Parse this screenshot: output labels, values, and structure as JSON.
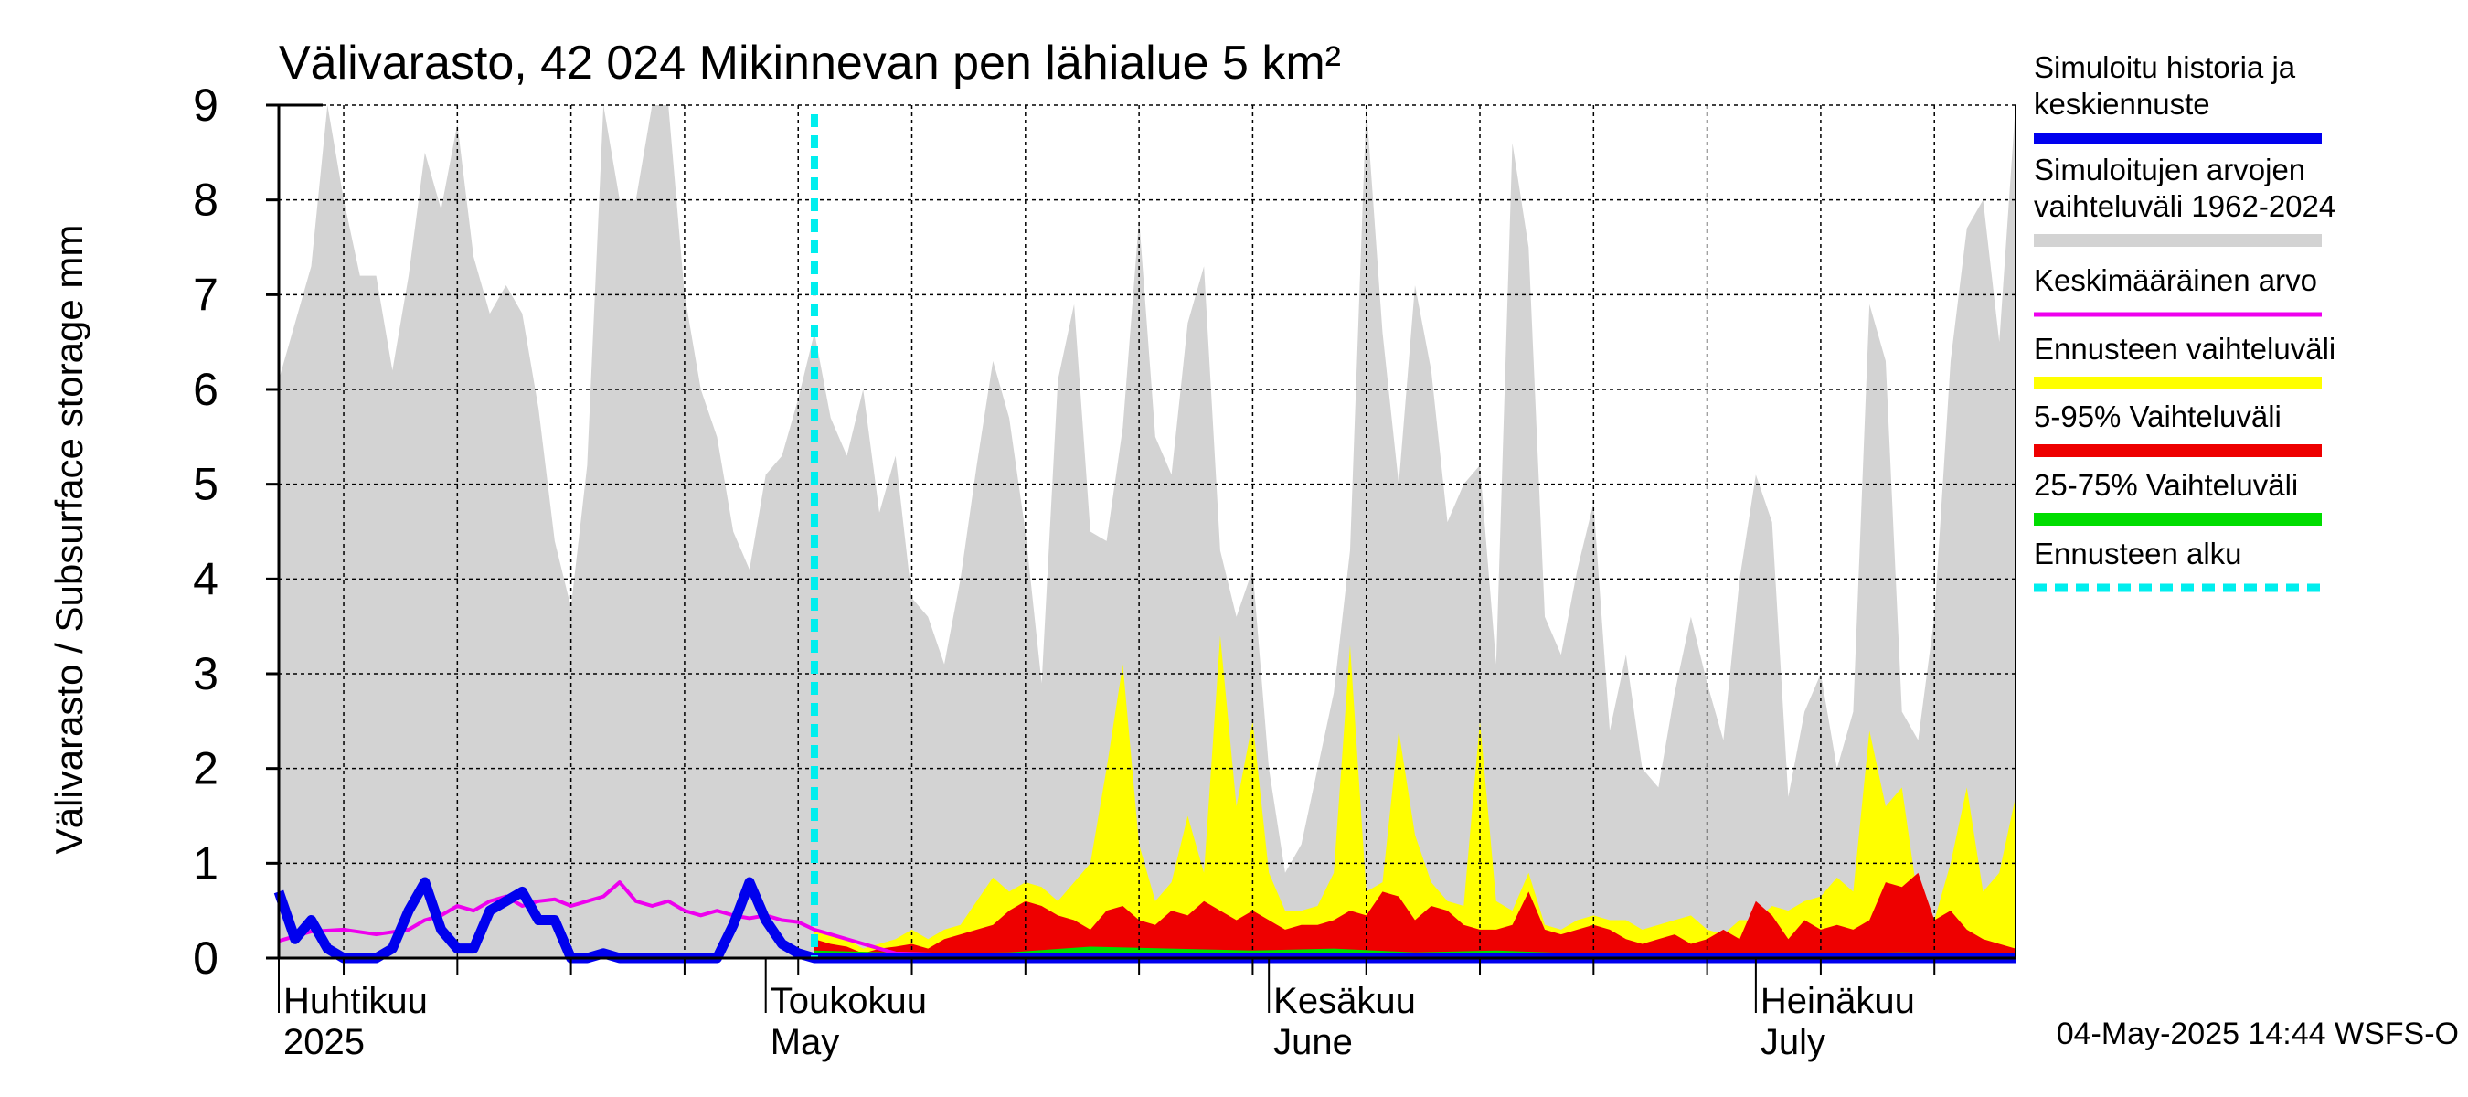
{
  "chart_data": {
    "type": "area",
    "title": "Välivarasto, 42 024 Mikinnevan pen lähialue 5 km²",
    "ylabel": "Välivarasto / Subsurface storage  mm",
    "xlabel": "",
    "ylim": [
      0,
      9
    ],
    "xlim_days": [
      0,
      107
    ],
    "grid": true,
    "y_ticks": [
      0,
      1,
      2,
      3,
      4,
      5,
      6,
      7,
      8,
      9
    ],
    "x_major_ticks_days": [
      0,
      30,
      61,
      91
    ],
    "month_labels": [
      {
        "day": 0,
        "line1": "Huhtikuu",
        "line2": "2025"
      },
      {
        "day": 30,
        "line1": "Toukokuu",
        "line2": "May"
      },
      {
        "day": 61,
        "line1": "Kesäkuu",
        "line2": "June"
      },
      {
        "day": 91,
        "line1": "Heinäkuu",
        "line2": "July"
      }
    ],
    "forecast_start_day": 33,
    "x_start": "2025-04-01",
    "legend": [
      {
        "label": "Simuloitu historia ja keskiennuste",
        "color": "#0000ee",
        "style": "solid"
      },
      {
        "label": "Simuloitujen arvojen vaihteluväli 1962-2024",
        "color": "#d3d3d3",
        "style": "solid"
      },
      {
        "label": "Keskimääräinen arvo",
        "color": "#ee00ee",
        "style": "solid"
      },
      {
        "label": "Ennusteen vaihteluväli",
        "color": "#ffff00",
        "style": "solid"
      },
      {
        "label": "5-95% Vaihteluväli",
        "color": "#ee0000",
        "style": "solid"
      },
      {
        "label": "25-75% Vaihteluväli",
        "color": "#00dd00",
        "style": "solid"
      },
      {
        "label": "Ennusteen alku",
        "color": "#00eeee",
        "style": "dashed"
      }
    ],
    "timestamp": "04-May-2025 14:44 WSFS-O",
    "series": [
      {
        "name": "Simuloitujen arvojen vaihteluväli 1962-2024 (max)",
        "color": "#d3d3d3",
        "x": [
          0,
          1,
          2,
          3,
          4,
          5,
          6,
          7,
          8,
          9,
          10,
          11,
          12,
          13,
          14,
          15,
          16,
          17,
          18,
          19,
          20,
          21,
          22,
          23,
          24,
          25,
          26,
          27,
          28,
          29,
          30,
          31,
          32,
          33,
          34,
          35,
          36,
          37,
          38,
          39,
          40,
          41,
          42,
          43,
          44,
          45,
          46,
          47,
          48,
          49,
          50,
          51,
          52,
          53,
          54,
          55,
          56,
          57,
          58,
          59,
          60,
          61,
          62,
          63,
          64,
          65,
          66,
          67,
          68,
          69,
          70,
          71,
          72,
          73,
          74,
          75,
          76,
          77,
          78,
          79,
          80,
          81,
          82,
          83,
          84,
          85,
          86,
          87,
          88,
          89,
          90,
          91,
          92,
          93,
          94,
          95,
          96,
          97,
          98,
          99,
          100,
          101,
          102,
          103,
          104,
          105,
          106,
          107
        ],
        "y": [
          6.1,
          6.7,
          7.3,
          9.0,
          8.0,
          7.2,
          7.2,
          6.2,
          7.2,
          8.5,
          7.9,
          8.8,
          7.4,
          6.8,
          7.1,
          6.8,
          5.8,
          4.4,
          3.7,
          5.2,
          9.0,
          8.0,
          8.0,
          9.0,
          9.0,
          7.0,
          6.0,
          5.5,
          4.5,
          4.1,
          5.1,
          5.3,
          5.9,
          6.6,
          5.7,
          5.3,
          6.0,
          4.7,
          5.3,
          3.8,
          3.6,
          3.1,
          4.0,
          5.2,
          6.3,
          5.7,
          4.5,
          2.9,
          6.1,
          6.9,
          4.5,
          4.4,
          5.6,
          7.8,
          5.5,
          5.1,
          6.7,
          7.3,
          4.3,
          3.6,
          4.1,
          2.0,
          0.9,
          1.2,
          2.0,
          2.8,
          4.3,
          9.0,
          6.6,
          5.0,
          7.1,
          6.2,
          4.6,
          5.0,
          5.2,
          3.1,
          8.6,
          7.5,
          3.6,
          3.2,
          4.1,
          4.8,
          2.4,
          3.2,
          2.0,
          1.8,
          2.8,
          3.6,
          2.9,
          2.3,
          4.0,
          5.1,
          4.6,
          1.7,
          2.6,
          3.0,
          2.0,
          2.6,
          6.9,
          6.3,
          2.6,
          2.3,
          3.6,
          6.3,
          7.7,
          8.0,
          6.5,
          9.0
        ]
      },
      {
        "name": "Ennusteen vaihteluväli (max)",
        "color": "#ffff00",
        "x": [
          33,
          34,
          35,
          36,
          37,
          38,
          39,
          40,
          41,
          42,
          43,
          44,
          45,
          46,
          47,
          48,
          49,
          50,
          51,
          52,
          53,
          54,
          55,
          56,
          57,
          58,
          59,
          60,
          61,
          62,
          63,
          64,
          65,
          66,
          67,
          68,
          69,
          70,
          71,
          72,
          73,
          74,
          75,
          76,
          77,
          78,
          79,
          80,
          81,
          82,
          83,
          84,
          85,
          86,
          87,
          88,
          89,
          90,
          91,
          92,
          93,
          94,
          95,
          96,
          97,
          98,
          99,
          100,
          101,
          102,
          103,
          104,
          105,
          106,
          107
        ],
        "y": [
          0.3,
          0.25,
          0.2,
          0.1,
          0.15,
          0.2,
          0.3,
          0.2,
          0.3,
          0.35,
          0.6,
          0.85,
          0.7,
          0.8,
          0.75,
          0.6,
          0.8,
          1.0,
          2.0,
          3.1,
          1.2,
          0.6,
          0.8,
          1.5,
          0.9,
          3.4,
          1.6,
          2.5,
          0.9,
          0.5,
          0.5,
          0.55,
          0.9,
          3.3,
          0.7,
          0.8,
          2.4,
          1.3,
          0.8,
          0.6,
          0.55,
          2.5,
          0.6,
          0.5,
          0.9,
          0.35,
          0.3,
          0.4,
          0.45,
          0.4,
          0.4,
          0.3,
          0.35,
          0.4,
          0.45,
          0.3,
          0.25,
          0.4,
          0.4,
          0.55,
          0.5,
          0.6,
          0.65,
          0.85,
          0.7,
          2.4,
          1.6,
          1.8,
          0.6,
          0.4,
          1.0,
          1.8,
          0.7,
          0.9,
          1.7
        ]
      },
      {
        "name": "5-95% Vaihteluväli (max)",
        "color": "#ee0000",
        "x": [
          33,
          34,
          35,
          36,
          37,
          38,
          39,
          40,
          41,
          42,
          43,
          44,
          45,
          46,
          47,
          48,
          49,
          50,
          51,
          52,
          53,
          54,
          55,
          56,
          57,
          58,
          59,
          60,
          61,
          62,
          63,
          64,
          65,
          66,
          67,
          68,
          69,
          70,
          71,
          72,
          73,
          74,
          75,
          76,
          77,
          78,
          79,
          80,
          81,
          82,
          83,
          84,
          85,
          86,
          87,
          88,
          89,
          90,
          91,
          92,
          93,
          94,
          95,
          96,
          97,
          98,
          99,
          100,
          101,
          102,
          103,
          104,
          105,
          106,
          107
        ],
        "y": [
          0.2,
          0.15,
          0.12,
          0.05,
          0.1,
          0.12,
          0.15,
          0.1,
          0.2,
          0.25,
          0.3,
          0.35,
          0.5,
          0.6,
          0.55,
          0.45,
          0.4,
          0.3,
          0.5,
          0.55,
          0.4,
          0.35,
          0.5,
          0.45,
          0.6,
          0.5,
          0.4,
          0.5,
          0.4,
          0.3,
          0.35,
          0.35,
          0.4,
          0.5,
          0.45,
          0.7,
          0.65,
          0.4,
          0.55,
          0.5,
          0.35,
          0.3,
          0.3,
          0.35,
          0.7,
          0.3,
          0.25,
          0.3,
          0.35,
          0.3,
          0.2,
          0.15,
          0.2,
          0.25,
          0.15,
          0.2,
          0.3,
          0.2,
          0.6,
          0.45,
          0.2,
          0.4,
          0.3,
          0.35,
          0.3,
          0.4,
          0.8,
          0.75,
          0.9,
          0.4,
          0.5,
          0.3,
          0.2,
          0.15,
          0.1
        ]
      },
      {
        "name": "25-75% Vaihteluväli (max)",
        "color": "#00dd00",
        "x": [
          33,
          40,
          45,
          50,
          55,
          60,
          65,
          70,
          75,
          80,
          85,
          90,
          95,
          100,
          105,
          107
        ],
        "y": [
          0.08,
          0.05,
          0.06,
          0.12,
          0.1,
          0.08,
          0.1,
          0.06,
          0.08,
          0.05,
          0.05,
          0.04,
          0.05,
          0.06,
          0.05,
          0.04
        ]
      },
      {
        "name": "Keskimääräinen arvo",
        "color": "#ee00ee",
        "x": [
          0,
          2,
          4,
          6,
          8,
          9,
          10,
          11,
          12,
          13,
          14,
          15,
          16,
          17,
          18,
          19,
          20,
          21,
          22,
          23,
          24,
          25,
          26,
          27,
          28,
          29,
          30,
          31,
          32,
          33,
          34,
          35,
          36,
          37,
          38,
          40,
          42,
          45,
          50,
          55,
          60,
          65,
          70,
          75,
          80,
          85,
          90,
          95,
          100,
          105,
          107
        ],
        "y": [
          0.18,
          0.28,
          0.3,
          0.25,
          0.3,
          0.4,
          0.45,
          0.55,
          0.5,
          0.6,
          0.65,
          0.55,
          0.6,
          0.62,
          0.55,
          0.6,
          0.65,
          0.8,
          0.6,
          0.55,
          0.6,
          0.5,
          0.45,
          0.5,
          0.45,
          0.42,
          0.45,
          0.4,
          0.38,
          0.3,
          0.25,
          0.2,
          0.15,
          0.1,
          0.05,
          0.04,
          0.03,
          0.03,
          0.02,
          0.02,
          0.02,
          0.02,
          0.02,
          0.02,
          0.02,
          0.02,
          0.02,
          0.02,
          0.02,
          0.02,
          0.02
        ]
      },
      {
        "name": "Simuloitu historia ja keskiennuste",
        "color": "#0000ee",
        "x": [
          0,
          1,
          2,
          3,
          4,
          5,
          6,
          7,
          8,
          9,
          10,
          11,
          12,
          13,
          14,
          15,
          16,
          17,
          18,
          19,
          20,
          21,
          22,
          23,
          24,
          25,
          26,
          27,
          28,
          29,
          30,
          31,
          32,
          33,
          34,
          35,
          36,
          37,
          38,
          40,
          42,
          45,
          50,
          55,
          60,
          65,
          70,
          75,
          80,
          85,
          90,
          95,
          100,
          105,
          107
        ],
        "y": [
          0.7,
          0.2,
          0.4,
          0.1,
          0.0,
          0.0,
          0.0,
          0.1,
          0.5,
          0.8,
          0.3,
          0.1,
          0.1,
          0.5,
          0.6,
          0.7,
          0.4,
          0.4,
          0.0,
          -0.05,
          0.05,
          0.0,
          -0.05,
          0.0,
          0.0,
          -0.05,
          0.0,
          0.0,
          0.35,
          0.8,
          0.4,
          0.15,
          0.05,
          0.0,
          -0.02,
          0.0,
          -0.02,
          -0.03,
          -0.03,
          -0.02,
          0.0,
          -0.02,
          -0.03,
          -0.03,
          -0.02,
          -0.03,
          -0.03,
          -0.03,
          -0.03,
          -0.02,
          -0.03,
          -0.03,
          -0.03,
          -0.03,
          -0.03
        ]
      }
    ]
  }
}
